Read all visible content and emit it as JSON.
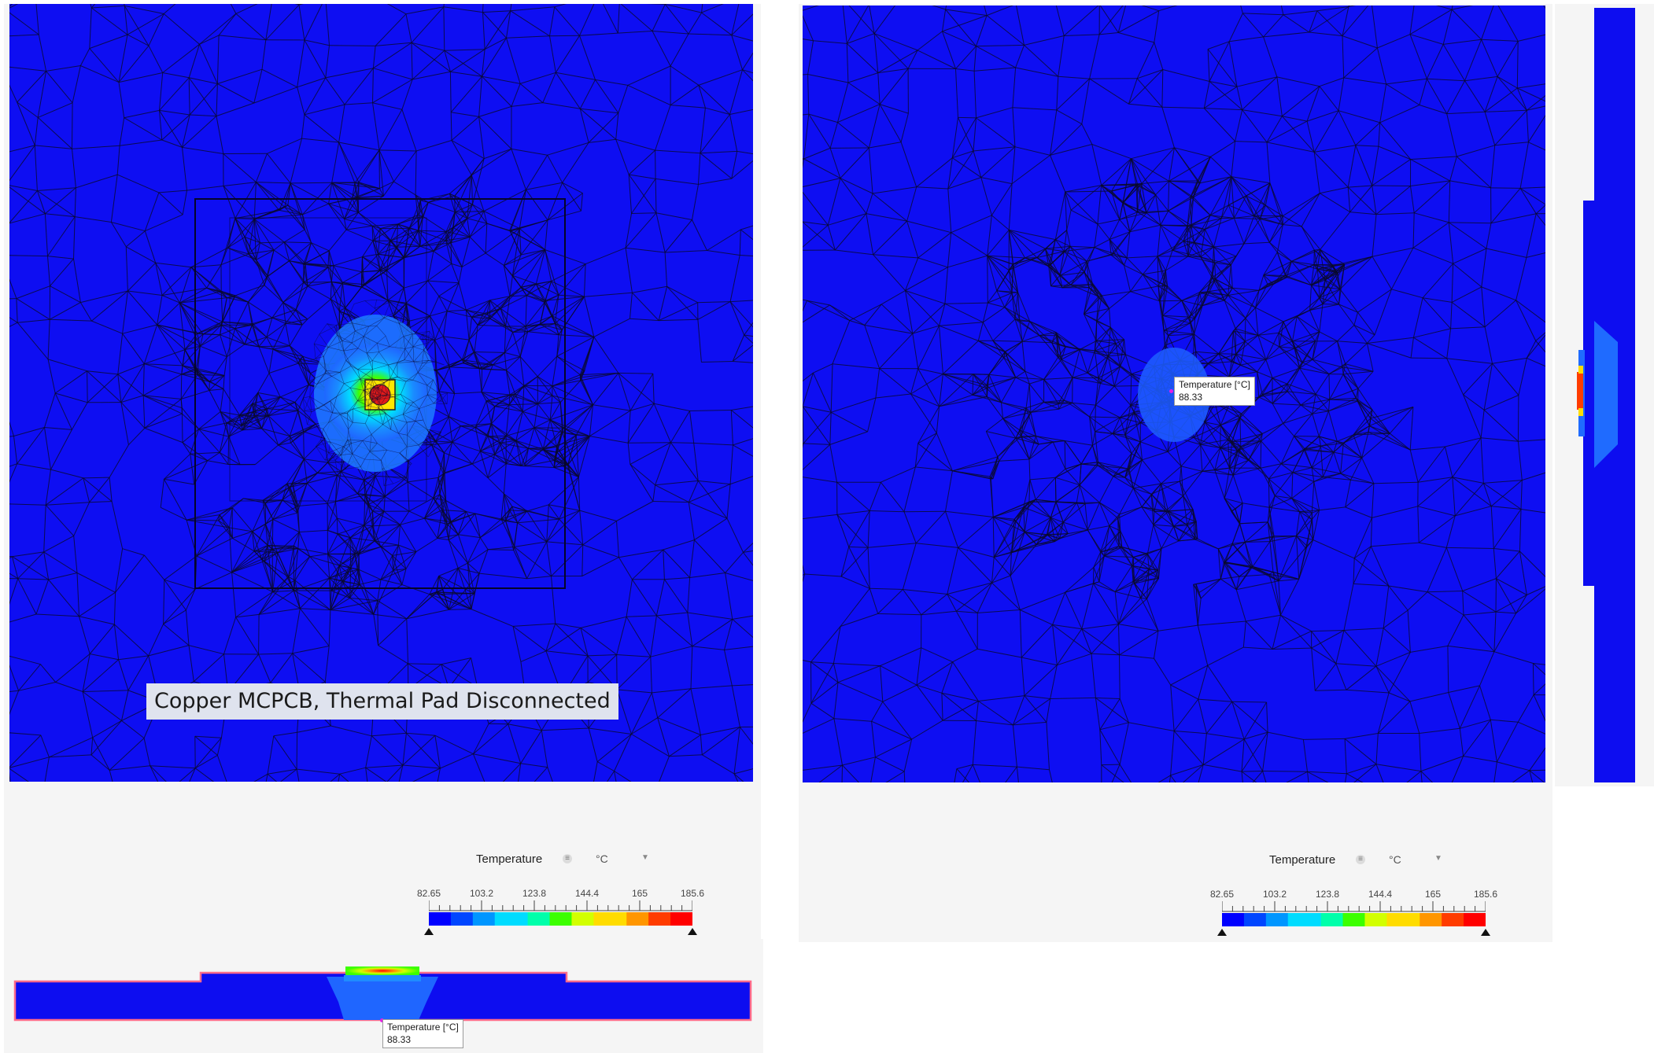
{
  "colors": {
    "mesh_fill": "#0e0ef2",
    "mesh_line": "#0a0a2a",
    "panel_bg": "#f5f5f5",
    "caption_bg": "#dfe3ee",
    "probe_marker": "#e61ee6",
    "colormap": [
      "#0000ff",
      "#0046ff",
      "#0096ff",
      "#00dcff",
      "#00ffaa",
      "#3cff00",
      "#d2ff00",
      "#ffdc00",
      "#ff9600",
      "#ff3c00",
      "#ff0000"
    ]
  },
  "left_view": {
    "caption": "Copper MCPCB, Thermal Pad Disconnected"
  },
  "right_view": {
    "probe": {
      "label": "Temperature [°C]",
      "value": "88.33"
    }
  },
  "side_strip": {
    "icon": "side-section-icon"
  },
  "cross_section": {
    "probe": {
      "label": "Temperature [°C]",
      "value": "88.33"
    }
  },
  "legends": [
    {
      "title": "Temperature",
      "unit": "°C",
      "ticks": [
        "82.65",
        "103.2",
        "123.8",
        "144.4",
        "165",
        "185.6"
      ],
      "min": 82.65,
      "max": 185.6
    },
    {
      "title": "Temperature",
      "unit": "°C",
      "ticks": [
        "82.65",
        "103.2",
        "123.8",
        "144.4",
        "165",
        "185.6"
      ],
      "min": 82.65,
      "max": 185.6
    }
  ]
}
